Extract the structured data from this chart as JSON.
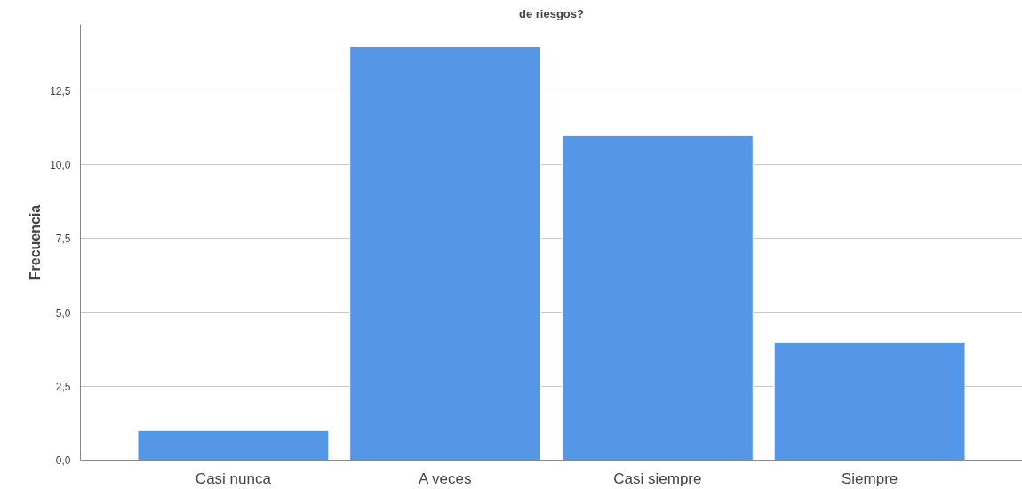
{
  "chart_data": {
    "type": "bar",
    "title": "de riesgos?",
    "ylabel": "Frecuencia",
    "categories": [
      "Casi nunca",
      "A veces",
      "Casi siempre",
      "Siempre"
    ],
    "values": [
      1,
      14,
      11,
      4
    ],
    "color": "#5596e6",
    "ylim": [
      0,
      14.75
    ],
    "yticks": [
      {
        "value": 0,
        "label": "0,0"
      },
      {
        "value": 2.5,
        "label": "2,5"
      },
      {
        "value": 5,
        "label": "5,0"
      },
      {
        "value": 7.5,
        "label": "7,5"
      },
      {
        "value": 10,
        "label": "10,0"
      },
      {
        "value": 12.5,
        "label": "12,5"
      }
    ],
    "grid": "y"
  }
}
